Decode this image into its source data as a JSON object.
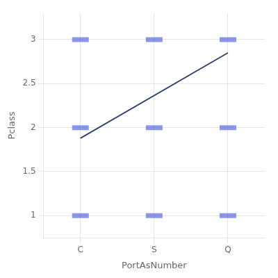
{
  "chart_data": {
    "type": "scatter",
    "xlabel": "PortAsNumber",
    "ylabel": "Pclass",
    "xlim": [
      0.5,
      3.5
    ],
    "xticks": [
      {
        "value": 1,
        "label": "C"
      },
      {
        "value": 2,
        "label": "S"
      },
      {
        "value": 3,
        "label": "Q"
      }
    ],
    "ylim": [
      0.75,
      3.3
    ],
    "yticks": [
      1,
      1.5,
      2,
      2.5,
      3
    ],
    "grid": true,
    "series": [
      {
        "type": "scatter",
        "color": "#5a6bdb",
        "marker": "line",
        "x": [
          1,
          1,
          1,
          2,
          2,
          2,
          3,
          3,
          3
        ],
        "values": [
          1,
          2,
          3,
          1,
          2,
          3,
          1,
          2,
          3
        ]
      },
      {
        "type": "line",
        "color": "#2c3e6b",
        "line_style": "solid",
        "x": [
          1,
          3
        ],
        "values": [
          1.88,
          2.85
        ]
      }
    ]
  }
}
